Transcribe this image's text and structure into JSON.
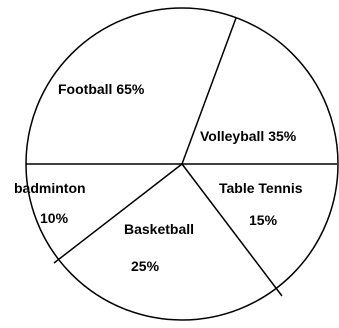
{
  "chart_data": {
    "type": "pie",
    "slices": [
      {
        "name": "Football",
        "label": "Football 65%",
        "display_value": "65%"
      },
      {
        "name": "Volleyball",
        "label": "Volleyball 35%",
        "display_value": "35%"
      },
      {
        "name": "Table Tennis",
        "label": "Table Tennis",
        "display_value": "15%"
      },
      {
        "name": "Basketball",
        "label": "Basketball",
        "display_value": "25%"
      },
      {
        "name": "badminton",
        "label": "badminton",
        "display_value": "10%"
      }
    ],
    "colors": {
      "fill": "#ffffff",
      "stroke": "#000000",
      "text": "#000000"
    }
  }
}
